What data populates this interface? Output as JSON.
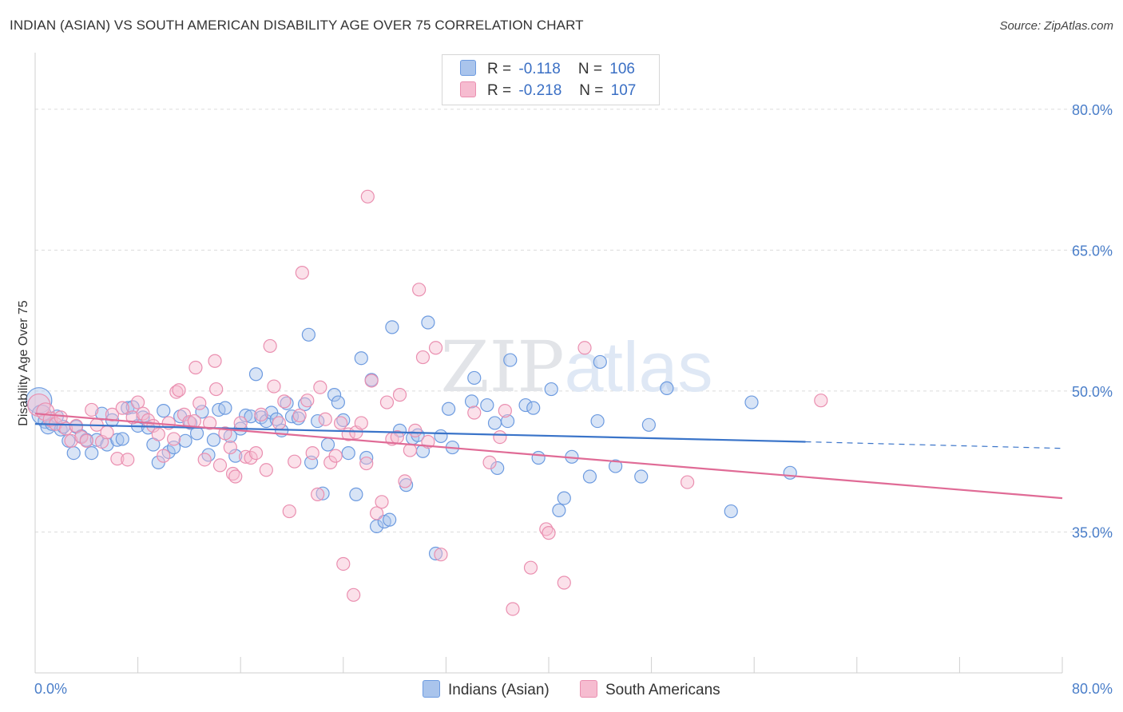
{
  "title": "INDIAN (ASIAN) VS SOUTH AMERICAN DISABILITY AGE OVER 75 CORRELATION CHART",
  "source": "Source: ZipAtlas.com",
  "watermark": "ZIPatlas",
  "legend_top": [
    {
      "r_label": "R =",
      "r_value": "-0.118",
      "n_label": "N =",
      "n_value": "106",
      "color": "#a9c4ec",
      "border": "#6d9be0"
    },
    {
      "r_label": "R =",
      "r_value": "-0.218",
      "n_label": "N =",
      "n_value": "107",
      "color": "#f6bcd0",
      "border": "#ea8fb0"
    }
  ],
  "legend_bottom": [
    {
      "label": "Indians (Asian)",
      "color": "#a9c4ec",
      "border": "#6d9be0"
    },
    {
      "label": "South Americans",
      "color": "#f6bcd0",
      "border": "#ea8fb0"
    }
  ],
  "chart_data": {
    "type": "scatter",
    "ylabel": "Disability Age Over 75",
    "xlim": [
      0,
      80
    ],
    "ylim": [
      20,
      85
    ],
    "x_tick_labels": [
      {
        "value": 0,
        "label": "0.0%"
      },
      {
        "value": 80,
        "label": "80.0%"
      }
    ],
    "y_tick_labels": [
      {
        "value": 80,
        "label": "80.0%"
      },
      {
        "value": 65,
        "label": "65.0%"
      },
      {
        "value": 50,
        "label": "50.0%"
      },
      {
        "value": 35,
        "label": "35.0%"
      }
    ],
    "grid": true,
    "series": [
      {
        "name": "Indians (Asian)",
        "color": "#6d9be0",
        "fill": "rgba(169,196,236,0.45)",
        "trend": {
          "x0": 0,
          "y0": 46.5,
          "x1": 60,
          "y1": 44.6,
          "dash_to_x": 80,
          "dash_to_y": 43.9,
          "color": "#3a74c9"
        },
        "points": [
          [
            0.3,
            49.0,
            16
          ],
          [
            0.5,
            47.5,
            12
          ],
          [
            0.8,
            46.8,
            9
          ],
          [
            1.0,
            46.2,
            9
          ],
          [
            1.3,
            46.5,
            8
          ],
          [
            1.7,
            47.3,
            8
          ],
          [
            2.0,
            45.9,
            8
          ],
          [
            2.2,
            46.2,
            8
          ],
          [
            2.6,
            44.7,
            8
          ],
          [
            3.0,
            43.4,
            8
          ],
          [
            3.2,
            46.2,
            8
          ],
          [
            3.6,
            45.2,
            8
          ],
          [
            4.0,
            44.8,
            8
          ],
          [
            4.4,
            43.4,
            8
          ],
          [
            4.8,
            44.8,
            8
          ],
          [
            5.2,
            47.6,
            8
          ],
          [
            5.6,
            44.3,
            8
          ],
          [
            6.0,
            46.9,
            8
          ],
          [
            6.4,
            44.8,
            8
          ],
          [
            6.8,
            44.9,
            8
          ],
          [
            7.2,
            48.2,
            8
          ],
          [
            7.6,
            48.3,
            8
          ],
          [
            8.0,
            46.3,
            8
          ],
          [
            8.4,
            47.2,
            8
          ],
          [
            8.8,
            46.1,
            8
          ],
          [
            9.2,
            44.3,
            8
          ],
          [
            9.6,
            42.4,
            8
          ],
          [
            10.0,
            47.9,
            8
          ],
          [
            10.4,
            43.5,
            8
          ],
          [
            10.8,
            44.0,
            8
          ],
          [
            11.3,
            47.3,
            8
          ],
          [
            11.7,
            44.7,
            8
          ],
          [
            12.1,
            46.6,
            8
          ],
          [
            12.6,
            45.5,
            8
          ],
          [
            13.0,
            47.8,
            8
          ],
          [
            13.5,
            43.2,
            8
          ],
          [
            13.9,
            44.8,
            8
          ],
          [
            14.3,
            48.0,
            8
          ],
          [
            14.8,
            48.2,
            8
          ],
          [
            15.2,
            45.2,
            8
          ],
          [
            15.6,
            43.1,
            8
          ],
          [
            16.0,
            46.0,
            8
          ],
          [
            16.4,
            47.4,
            8
          ],
          [
            16.8,
            47.3,
            8
          ],
          [
            17.2,
            51.8,
            8
          ],
          [
            17.6,
            47.2,
            8
          ],
          [
            18.0,
            46.8,
            8
          ],
          [
            18.4,
            47.7,
            8
          ],
          [
            18.8,
            47.0,
            8
          ],
          [
            19.2,
            45.8,
            8
          ],
          [
            19.6,
            48.7,
            8
          ],
          [
            20.0,
            47.3,
            8
          ],
          [
            20.5,
            47.1,
            8
          ],
          [
            21.0,
            48.6,
            8
          ],
          [
            21.3,
            56.0,
            8
          ],
          [
            21.5,
            42.4,
            8
          ],
          [
            22.0,
            46.8,
            8
          ],
          [
            22.4,
            39.1,
            8
          ],
          [
            22.8,
            44.3,
            8
          ],
          [
            23.3,
            49.6,
            8
          ],
          [
            23.6,
            48.8,
            8
          ],
          [
            24.0,
            46.9,
            8
          ],
          [
            24.4,
            43.4,
            8
          ],
          [
            25.0,
            39.0,
            8
          ],
          [
            25.4,
            53.5,
            8
          ],
          [
            25.8,
            42.9,
            8
          ],
          [
            26.2,
            51.2,
            8
          ],
          [
            26.6,
            35.6,
            8
          ],
          [
            27.2,
            36.1,
            8
          ],
          [
            27.6,
            36.3,
            8
          ],
          [
            27.8,
            56.8,
            8
          ],
          [
            28.4,
            45.8,
            8
          ],
          [
            28.9,
            40.0,
            8
          ],
          [
            29.4,
            45.0,
            8
          ],
          [
            29.8,
            45.3,
            8
          ],
          [
            30.2,
            43.6,
            8
          ],
          [
            30.6,
            57.3,
            8
          ],
          [
            31.2,
            32.7,
            8
          ],
          [
            31.6,
            45.2,
            8
          ],
          [
            32.2,
            48.1,
            8
          ],
          [
            32.5,
            44.0,
            8
          ],
          [
            34.0,
            48.9,
            8
          ],
          [
            34.2,
            51.4,
            8
          ],
          [
            35.2,
            48.5,
            8
          ],
          [
            35.8,
            46.6,
            8
          ],
          [
            36.0,
            41.8,
            8
          ],
          [
            36.8,
            46.8,
            8
          ],
          [
            37.0,
            53.3,
            8
          ],
          [
            38.2,
            48.5,
            8
          ],
          [
            38.8,
            48.2,
            8
          ],
          [
            39.2,
            42.9,
            8
          ],
          [
            40.2,
            50.2,
            8
          ],
          [
            40.8,
            37.3,
            8
          ],
          [
            41.2,
            38.6,
            8
          ],
          [
            41.8,
            43.0,
            8
          ],
          [
            43.2,
            40.9,
            8
          ],
          [
            43.8,
            46.8,
            8
          ],
          [
            44.0,
            53.1,
            8
          ],
          [
            45.2,
            42.0,
            8
          ],
          [
            47.2,
            40.9,
            8
          ],
          [
            47.8,
            46.4,
            8
          ],
          [
            49.2,
            50.3,
            8
          ],
          [
            54.2,
            37.2,
            8
          ],
          [
            55.8,
            48.8,
            8
          ],
          [
            58.8,
            41.3,
            8
          ]
        ]
      },
      {
        "name": "South Americans",
        "color": "#ea8fb0",
        "fill": "rgba(246,188,208,0.45)",
        "trend": {
          "x0": 0,
          "y0": 47.6,
          "x1": 80,
          "y1": 38.6,
          "color": "#e06b96"
        },
        "points": [
          [
            0.3,
            48.5,
            14
          ],
          [
            0.8,
            47.8,
            11
          ],
          [
            1.2,
            47.0,
            9
          ],
          [
            1.6,
            46.5,
            8
          ],
          [
            2.0,
            47.2,
            8
          ],
          [
            2.4,
            46.0,
            8
          ],
          [
            2.8,
            44.7,
            8
          ],
          [
            3.2,
            46.3,
            8
          ],
          [
            3.6,
            45.1,
            8
          ],
          [
            4.0,
            44.7,
            8
          ],
          [
            4.4,
            48.0,
            8
          ],
          [
            4.8,
            46.4,
            8
          ],
          [
            5.2,
            44.6,
            8
          ],
          [
            5.6,
            45.6,
            8
          ],
          [
            6.0,
            47.5,
            8
          ],
          [
            6.4,
            42.8,
            8
          ],
          [
            6.8,
            48.2,
            8
          ],
          [
            7.2,
            42.7,
            8
          ],
          [
            7.6,
            47.2,
            8
          ],
          [
            8.0,
            48.8,
            8
          ],
          [
            8.4,
            47.6,
            8
          ],
          [
            8.8,
            46.9,
            8
          ],
          [
            9.2,
            46.3,
            8
          ],
          [
            9.6,
            45.4,
            8
          ],
          [
            10.0,
            43.1,
            8
          ],
          [
            10.4,
            46.6,
            8
          ],
          [
            10.8,
            44.9,
            8
          ],
          [
            11.0,
            49.9,
            8
          ],
          [
            11.2,
            50.1,
            8
          ],
          [
            11.6,
            47.5,
            8
          ],
          [
            12.0,
            46.7,
            8
          ],
          [
            12.4,
            46.8,
            8
          ],
          [
            12.5,
            52.5,
            8
          ],
          [
            12.8,
            48.7,
            8
          ],
          [
            13.2,
            42.7,
            8
          ],
          [
            13.6,
            46.6,
            8
          ],
          [
            14.0,
            53.2,
            8
          ],
          [
            14.1,
            50.2,
            8
          ],
          [
            14.4,
            42.1,
            8
          ],
          [
            14.8,
            45.5,
            8
          ],
          [
            15.2,
            44.0,
            8
          ],
          [
            15.4,
            41.2,
            8
          ],
          [
            15.6,
            40.9,
            8
          ],
          [
            16.0,
            46.6,
            8
          ],
          [
            16.4,
            43.0,
            8
          ],
          [
            16.8,
            42.9,
            8
          ],
          [
            17.2,
            43.4,
            8
          ],
          [
            17.6,
            47.5,
            8
          ],
          [
            18.0,
            41.6,
            8
          ],
          [
            18.3,
            54.8,
            8
          ],
          [
            18.6,
            50.5,
            8
          ],
          [
            19.0,
            46.6,
            8
          ],
          [
            19.4,
            48.9,
            8
          ],
          [
            19.8,
            37.2,
            8
          ],
          [
            20.2,
            42.5,
            8
          ],
          [
            20.6,
            47.4,
            8
          ],
          [
            20.8,
            62.6,
            8
          ],
          [
            21.2,
            49.0,
            8
          ],
          [
            21.6,
            43.4,
            8
          ],
          [
            22.0,
            39.0,
            8
          ],
          [
            22.2,
            50.4,
            8
          ],
          [
            22.6,
            47.0,
            8
          ],
          [
            23.0,
            42.4,
            8
          ],
          [
            23.4,
            43.1,
            8
          ],
          [
            23.8,
            46.6,
            8
          ],
          [
            24.0,
            31.6,
            8
          ],
          [
            24.4,
            45.4,
            8
          ],
          [
            24.8,
            28.3,
            8
          ],
          [
            25.0,
            45.6,
            8
          ],
          [
            25.4,
            46.6,
            8
          ],
          [
            25.8,
            42.3,
            8
          ],
          [
            25.9,
            70.7,
            8
          ],
          [
            26.2,
            51.1,
            8
          ],
          [
            26.6,
            37.0,
            8
          ],
          [
            27.0,
            38.2,
            8
          ],
          [
            27.4,
            48.8,
            8
          ],
          [
            27.8,
            44.9,
            8
          ],
          [
            28.2,
            45.1,
            8
          ],
          [
            28.4,
            49.6,
            8
          ],
          [
            28.8,
            40.4,
            8
          ],
          [
            29.2,
            43.7,
            8
          ],
          [
            29.6,
            45.8,
            8
          ],
          [
            29.9,
            60.8,
            8
          ],
          [
            30.2,
            53.6,
            8
          ],
          [
            30.6,
            44.6,
            8
          ],
          [
            31.2,
            54.6,
            8
          ],
          [
            31.6,
            32.6,
            8
          ],
          [
            34.2,
            47.7,
            8
          ],
          [
            35.4,
            42.4,
            8
          ],
          [
            36.2,
            45.1,
            8
          ],
          [
            36.6,
            47.9,
            8
          ],
          [
            37.2,
            26.8,
            8
          ],
          [
            38.6,
            31.2,
            8
          ],
          [
            39.8,
            35.3,
            8
          ],
          [
            40.0,
            34.9,
            8
          ],
          [
            41.2,
            29.6,
            8
          ],
          [
            42.8,
            54.6,
            8
          ],
          [
            50.8,
            40.3,
            8
          ],
          [
            61.2,
            49.0,
            8
          ]
        ]
      }
    ]
  }
}
